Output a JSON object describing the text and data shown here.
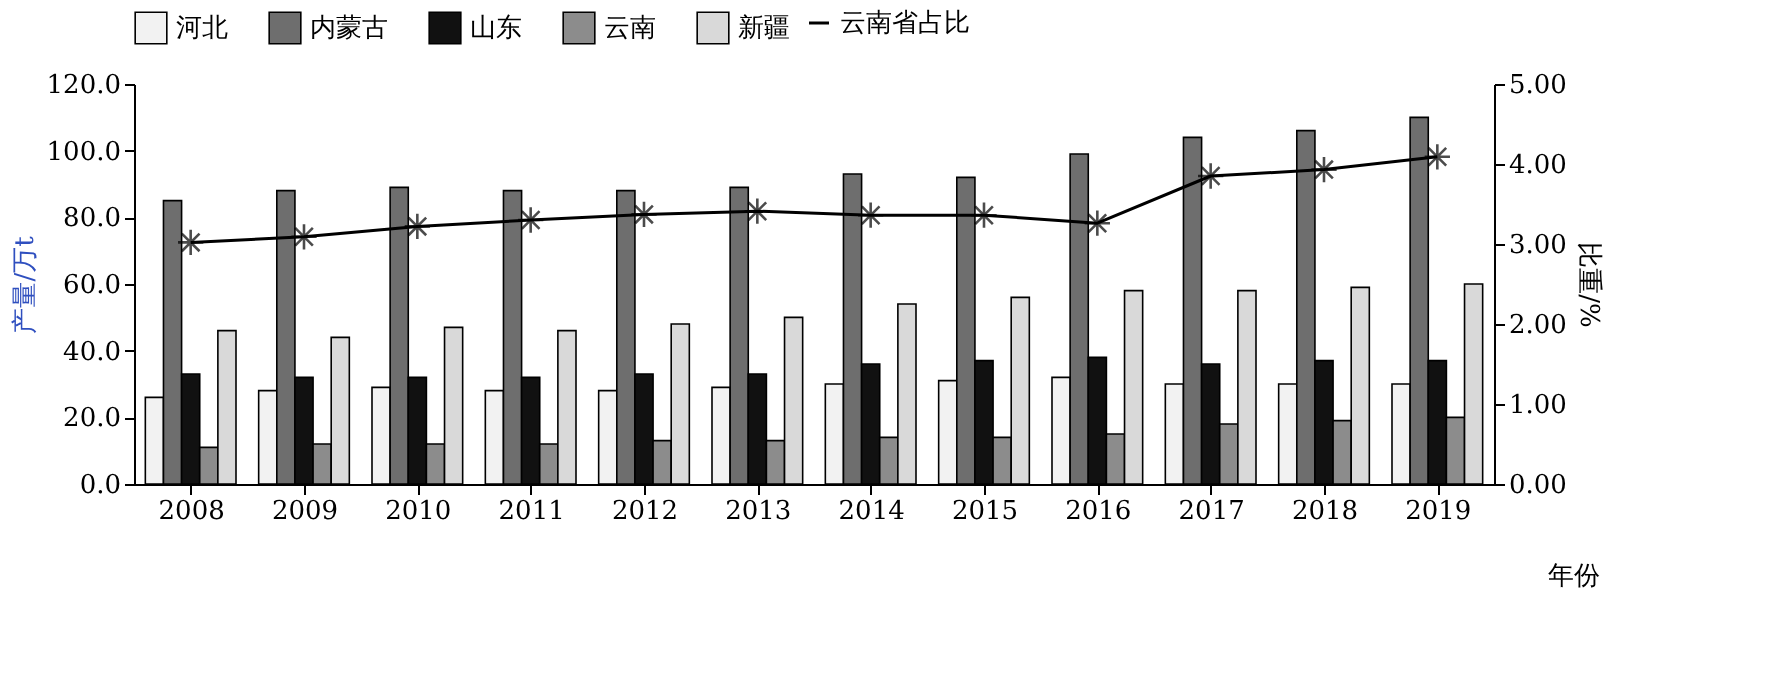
{
  "chart_data": {
    "type": "bar",
    "xlabel": "年份",
    "ylabel": "产量/万t",
    "y2label": "比重/%",
    "categories": [
      "2008",
      "2009",
      "2010",
      "2011",
      "2012",
      "2013",
      "2014",
      "2015",
      "2016",
      "2017",
      "2018",
      "2019"
    ],
    "series": [
      {
        "name": "河北",
        "color": "#f2f2f2",
        "values": [
          26,
          28,
          29,
          28,
          28,
          29,
          30,
          31,
          32,
          30,
          30,
          30
        ]
      },
      {
        "name": "内蒙古",
        "color": "#6e6e6e",
        "values": [
          85,
          88,
          89,
          88,
          88,
          89,
          93,
          92,
          99,
          104,
          106,
          110
        ]
      },
      {
        "name": "山东",
        "color": "#111111",
        "values": [
          33,
          32,
          32,
          32,
          33,
          33,
          36,
          37,
          38,
          36,
          37,
          37
        ]
      },
      {
        "name": "云南",
        "color": "#8c8c8c",
        "values": [
          11,
          12,
          12,
          12,
          13,
          13,
          14,
          14,
          15,
          18,
          19,
          20
        ]
      },
      {
        "name": "新疆",
        "color": "#d9d9d9",
        "values": [
          46,
          44,
          47,
          46,
          48,
          50,
          54,
          56,
          58,
          58,
          59,
          60
        ]
      },
      {
        "name": "云南省占比",
        "type": "line",
        "axis": "y2",
        "color": "#000000",
        "marker": "cross",
        "values": [
          3.02,
          3.09,
          3.22,
          3.3,
          3.37,
          3.41,
          3.36,
          3.36,
          3.26,
          3.85,
          3.93,
          4.09
        ]
      }
    ],
    "ylim": [
      0,
      120
    ],
    "yticks": [
      {
        "value": 0,
        "label": "0.0"
      },
      {
        "value": 20,
        "label": "20.0"
      },
      {
        "value": 40,
        "label": "40.0"
      },
      {
        "value": 60,
        "label": "60.0"
      },
      {
        "value": 80,
        "label": "80.0"
      },
      {
        "value": 100,
        "label": "100.0"
      },
      {
        "value": 120,
        "label": "120.0"
      }
    ],
    "y2lim": [
      0,
      5
    ],
    "y2ticks": [
      {
        "value": 0,
        "label": "0.00"
      },
      {
        "value": 1,
        "label": "1.00"
      },
      {
        "value": 2,
        "label": "2.00"
      },
      {
        "value": 3,
        "label": "3.00"
      },
      {
        "value": 4,
        "label": "4.00"
      },
      {
        "value": 5,
        "label": "5.00"
      }
    ],
    "legend": "top",
    "grid": false
  }
}
